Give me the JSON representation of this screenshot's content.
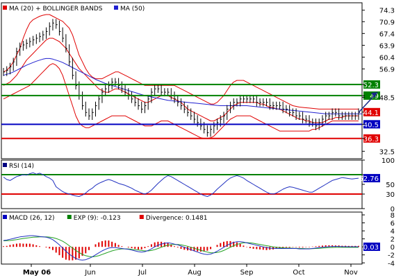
{
  "chart_data": [
    {
      "type": "line",
      "panel": "price",
      "legend": [
        {
          "label": "MA (20) + BOLLINGER BANDS",
          "color": "#e00000"
        },
        {
          "label": "MA (50)",
          "color": "#2020d0"
        }
      ],
      "x_ticks": [
        "May 06",
        "Jun",
        "Jul",
        "Aug",
        "Sep",
        "Oct",
        "Nov"
      ],
      "y_ticks": [
        32.5,
        36.3,
        40.5,
        44.1,
        48.5,
        49,
        52.3,
        56.9,
        60.4,
        63.9,
        67.4,
        70.9,
        74.3
      ],
      "y_tick_labels": [
        "32.5",
        "",
        "",
        "",
        "48.5",
        "",
        "",
        "56.9",
        "60.4",
        "63.9",
        "67.4",
        "70.9",
        "74.3"
      ],
      "ylim": [
        30.3,
        76.5
      ],
      "hlines": [
        {
          "value": 52.3,
          "label": "52.3",
          "color": "#008000"
        },
        {
          "value": 49,
          "label": "49",
          "color": "#008000"
        },
        {
          "value": 40.5,
          "label": "40.5",
          "color": "#0000c0"
        },
        {
          "value": 36.3,
          "label": "36.3",
          "color": "#e00000"
        }
      ],
      "last_value": {
        "value": 44.1,
        "label": "44.1",
        "color": "#e00000"
      },
      "close": [
        56,
        56.5,
        57.5,
        59,
        62,
        63.5,
        64,
        64.5,
        65,
        65.5,
        66,
        66.5,
        67,
        68,
        69.5,
        70.5,
        70,
        68,
        66,
        63,
        59,
        55,
        52,
        49,
        46,
        44,
        43,
        44,
        46,
        48,
        50,
        51,
        52,
        53,
        53,
        52,
        51,
        50,
        49,
        48,
        47,
        46,
        45,
        46,
        48,
        50,
        51,
        51,
        50,
        50,
        50,
        49,
        48,
        47,
        46,
        45,
        44,
        43,
        42,
        41,
        40,
        39,
        38,
        39,
        40,
        41,
        42,
        43,
        45,
        46,
        47,
        47,
        48,
        48,
        48,
        48,
        48,
        47,
        47,
        47,
        47,
        46,
        46,
        46,
        46,
        45,
        45,
        44,
        44,
        43,
        43,
        42,
        42,
        41,
        41,
        40,
        41,
        42,
        43,
        43,
        44,
        44,
        43,
        43,
        43,
        43,
        43,
        43,
        44
      ],
      "ma20": [
        52,
        52.5,
        53,
        54,
        55,
        56.5,
        58,
        59.5,
        60.5,
        61.5,
        62.5,
        63.5,
        64.5,
        65.5,
        66,
        66,
        65.5,
        65,
        64,
        63,
        61.5,
        60,
        58.5,
        57,
        56,
        55,
        54,
        53,
        52,
        51,
        50.5,
        50,
        50,
        50.5,
        51,
        51,
        50.5,
        50,
        49.5,
        49,
        48.5,
        48,
        47.5,
        47,
        47,
        47.5,
        48,
        48.5,
        49,
        49,
        49,
        48.5,
        48,
        47.5,
        47,
        46,
        45,
        44.5,
        44,
        43.5,
        43,
        42.5,
        42,
        41.5,
        41.5,
        42,
        42.5,
        43,
        44,
        45,
        46,
        46.5,
        47,
        47,
        47,
        47,
        47,
        47,
        46.5,
        46.5,
        46,
        45.5,
        45.5,
        45,
        45,
        44.5,
        44,
        43.5,
        43,
        42.5,
        42,
        42,
        41.5,
        41.5,
        41,
        41,
        41,
        41,
        41.5,
        42,
        42,
        42.5,
        42.5,
        42.5,
        43,
        43,
        43,
        43,
        43
      ],
      "ma50": [
        55,
        55.3,
        55.6,
        56,
        56.5,
        57,
        57.5,
        58,
        58.4,
        58.8,
        59.2,
        59.5,
        59.8,
        60,
        60,
        59.8,
        59.5,
        59.2,
        58.8,
        58.3,
        57.8,
        57.3,
        56.8,
        56.3,
        55.8,
        55.3,
        54.8,
        54.3,
        53.8,
        53.4,
        53,
        52.6,
        52.3,
        52,
        51.7,
        51.4,
        51.1,
        50.8,
        50.5,
        50.2,
        49.9,
        49.6,
        49.3,
        49,
        48.8,
        48.6,
        48.4,
        48.2,
        48,
        47.8,
        47.6,
        47.5,
        47.4,
        47.3,
        47.2,
        47.1,
        47,
        46.9,
        46.8,
        46.7,
        46.6,
        46.5,
        46.4,
        46.3,
        46.2,
        46.1,
        46,
        46,
        46,
        46,
        46,
        46,
        46,
        46,
        46,
        45.9,
        45.8,
        45.7,
        45.6,
        45.5,
        45.4,
        45.3,
        45.2,
        45.1,
        45,
        44.9,
        44.8,
        44.7,
        44.6,
        44.5,
        44.4,
        44.3,
        44.2,
        44.1,
        44,
        43.9,
        43.8,
        43.7,
        43.6,
        43.6,
        43.6,
        43.6,
        43.6,
        43.6,
        43.6,
        43.6,
        43.6,
        43.6,
        43.6,
        43.6
      ],
      "bb_upper": [
        56,
        56.5,
        57.5,
        59,
        61,
        63,
        66,
        68.5,
        70.5,
        71.5,
        72,
        72.5,
        72.8,
        73,
        73,
        72.5,
        72,
        71.5,
        71,
        70,
        69,
        67,
        64,
        61,
        59,
        57,
        55.5,
        54.5,
        54,
        54,
        54,
        54.5,
        55,
        55.5,
        56,
        56,
        55.5,
        55,
        54.5,
        54,
        53.5,
        53,
        52.5,
        52,
        52,
        52,
        52,
        52,
        52,
        52,
        52,
        52,
        52,
        51.5,
        51,
        50.5,
        50,
        49.5,
        49,
        48.5,
        48,
        47.5,
        47,
        46.5,
        46.5,
        47,
        48,
        49,
        50.5,
        52,
        53,
        53.5,
        53.5,
        53.5,
        53,
        52.5,
        52,
        51.5,
        51,
        50.5,
        50,
        49.5,
        49,
        48.5,
        48,
        47.5,
        47,
        46.5,
        46,
        45.8,
        45.6,
        45.5,
        45.4,
        45.3,
        45.2,
        45.1,
        45,
        45,
        45,
        45,
        45,
        45,
        45,
        45,
        45,
        45,
        45,
        45,
        45
      ],
      "bb_lower": [
        48,
        48.5,
        49,
        49.5,
        50,
        50.5,
        51,
        51.5,
        52,
        53,
        54,
        55,
        56,
        57,
        58,
        58.5,
        58,
        57,
        55,
        52,
        49,
        46,
        43,
        41,
        40,
        39.5,
        39.5,
        40,
        40.5,
        41,
        41.5,
        42,
        42.5,
        43,
        43,
        43,
        43,
        43,
        42.5,
        42,
        41.5,
        41,
        40.5,
        40,
        40,
        40,
        40.5,
        41,
        41.5,
        41.5,
        41.5,
        41,
        40.5,
        40,
        39.5,
        39,
        38.5,
        38,
        37.5,
        37,
        36.5,
        36.3,
        36.3,
        36.5,
        37,
        38,
        39,
        40,
        41,
        42,
        42.5,
        43,
        43,
        43,
        43,
        43,
        42.5,
        42,
        41.5,
        41,
        40.5,
        40,
        39.5,
        39,
        38.5,
        38.5,
        38.5,
        38.5,
        38.5,
        38.5,
        38.5,
        38.5,
        38.5,
        38.5,
        39,
        39,
        39.5,
        40,
        40.5,
        41,
        41.5,
        41.5,
        41.5,
        41.5,
        41.5,
        41.5,
        41.5,
        41.5,
        41.5
      ]
    },
    {
      "type": "line",
      "panel": "rsi",
      "legend": [
        {
          "label": "RSI (14)",
          "color": "#000080"
        }
      ],
      "y_ticks": [
        0,
        30,
        50,
        70,
        100
      ],
      "y_tick_labels": [
        "0",
        "30",
        "50",
        "",
        "100"
      ],
      "ylim": [
        0,
        100
      ],
      "hlines": [
        {
          "value": 70,
          "label": "",
          "color": "#008000"
        },
        {
          "value": 30,
          "label": "",
          "color": "#e00000"
        }
      ],
      "last_value": {
        "value": 62.76,
        "label": "62.76",
        "color": "#0000c0"
      },
      "values": [
        65,
        60,
        58,
        62,
        66,
        68,
        70,
        69,
        72,
        74,
        71,
        73,
        70,
        66,
        63,
        58,
        45,
        40,
        35,
        32,
        30,
        28,
        26,
        25,
        28,
        32,
        38,
        42,
        48,
        52,
        55,
        58,
        60,
        58,
        55,
        52,
        50,
        48,
        45,
        42,
        38,
        35,
        32,
        30,
        33,
        38,
        45,
        52,
        58,
        64,
        68,
        66,
        62,
        58,
        54,
        50,
        46,
        42,
        38,
        34,
        30,
        27,
        25,
        28,
        33,
        40,
        46,
        52,
        58,
        63,
        66,
        68,
        66,
        63,
        58,
        54,
        50,
        46,
        42,
        38,
        34,
        31,
        30,
        32,
        36,
        40,
        43,
        45,
        44,
        42,
        40,
        38,
        36,
        34,
        34,
        38,
        42,
        46,
        50,
        54,
        58,
        60,
        62,
        64,
        63,
        62,
        61,
        62,
        62.76
      ]
    },
    {
      "type": "line",
      "panel": "macd",
      "legend": [
        {
          "label": "MACD (26, 12)",
          "color": "#0000c0"
        },
        {
          "label": "EXP (9): -0.123",
          "color": "#008000"
        },
        {
          "label": "Divergence: 0.1481",
          "color": "#e00000"
        }
      ],
      "y_ticks": [
        -4,
        -2,
        0,
        2,
        4,
        6,
        8
      ],
      "y_tick_labels": [
        "-4",
        "-2",
        "0",
        "2",
        "4",
        "6",
        "8"
      ],
      "ylim": [
        -4.3,
        8.7
      ],
      "last_value": {
        "value": 0.03,
        "label": "0.03",
        "color": "#0000c0"
      },
      "macd": [
        1.6,
        1.7,
        1.9,
        2.1,
        2.3,
        2.5,
        2.6,
        2.7,
        2.8,
        2.8,
        2.7,
        2.6,
        2.5,
        2.4,
        2.2,
        1.8,
        1.2,
        0.5,
        -0.3,
        -1.1,
        -1.8,
        -2.4,
        -2.9,
        -3.2,
        -3.3,
        -3.2,
        -2.9,
        -2.5,
        -2,
        -1.5,
        -1,
        -0.6,
        -0.3,
        -0.2,
        -0.2,
        -0.3,
        -0.4,
        -0.5,
        -0.6,
        -0.8,
        -1,
        -1.2,
        -1.3,
        -1.2,
        -0.9,
        -0.5,
        0,
        0.4,
        0.7,
        0.9,
        1,
        0.9,
        0.7,
        0.5,
        0.2,
        -0.1,
        -0.4,
        -0.7,
        -1,
        -1.3,
        -1.6,
        -1.8,
        -1.9,
        -1.8,
        -1.5,
        -1.1,
        -0.6,
        -0.1,
        0.4,
        0.8,
        1.1,
        1.3,
        1.3,
        1.2,
        1,
        0.8,
        0.6,
        0.4,
        0.2,
        0,
        -0.2,
        -0.3,
        -0.4,
        -0.4,
        -0.4,
        -0.4,
        -0.4,
        -0.4,
        -0.4,
        -0.4,
        -0.5,
        -0.5,
        -0.5,
        -0.5,
        -0.4,
        -0.3,
        -0.2,
        -0.1,
        0,
        0.05,
        0.1,
        0.1,
        0.1,
        0.05,
        0.05,
        0.03,
        0.03,
        0.03,
        0.03
      ],
      "signal": [
        1.5,
        1.55,
        1.6,
        1.7,
        1.8,
        1.95,
        2.1,
        2.2,
        2.3,
        2.4,
        2.45,
        2.5,
        2.5,
        2.5,
        2.45,
        2.3,
        2.1,
        1.8,
        1.4,
        0.9,
        0.3,
        -0.3,
        -0.9,
        -1.4,
        -1.9,
        -2.2,
        -2.4,
        -2.5,
        -2.4,
        -2.2,
        -1.9,
        -1.6,
        -1.3,
        -1,
        -0.8,
        -0.6,
        -0.5,
        -0.5,
        -0.5,
        -0.6,
        -0.7,
        -0.8,
        -0.9,
        -1,
        -1,
        -0.9,
        -0.7,
        -0.4,
        -0.1,
        0.2,
        0.4,
        0.55,
        0.6,
        0.6,
        0.5,
        0.35,
        0.15,
        -0.1,
        -0.35,
        -0.6,
        -0.85,
        -1.1,
        -1.3,
        -1.45,
        -1.5,
        -1.4,
        -1.2,
        -0.9,
        -0.5,
        -0.1,
        0.3,
        0.6,
        0.85,
        1,
        1.05,
        1,
        0.9,
        0.75,
        0.6,
        0.45,
        0.3,
        0.15,
        0,
        -0.1,
        -0.2,
        -0.25,
        -0.3,
        -0.3,
        -0.35,
        -0.35,
        -0.4,
        -0.4,
        -0.45,
        -0.45,
        -0.45,
        -0.4,
        -0.35,
        -0.3,
        -0.25,
        -0.2,
        -0.15,
        -0.12,
        -0.12,
        -0.12,
        -0.12,
        -0.12,
        -0.12,
        -0.12,
        -0.123
      ]
    }
  ]
}
